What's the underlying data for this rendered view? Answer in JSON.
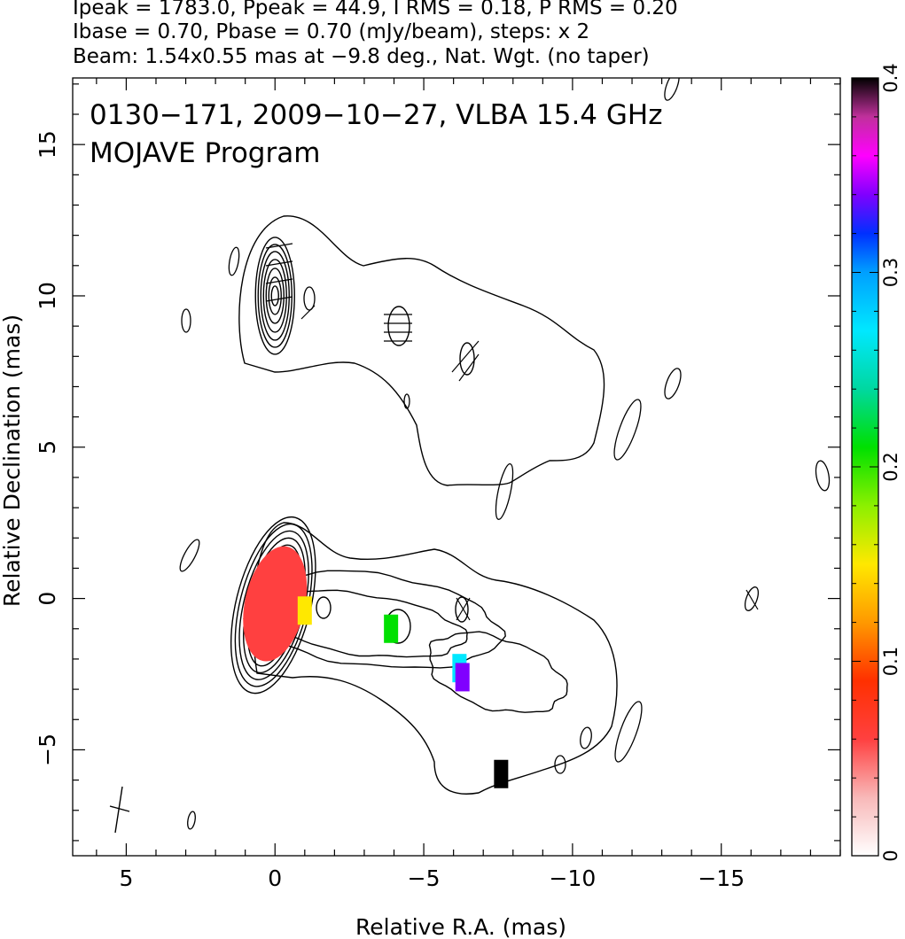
{
  "header": {
    "line1": "Ipeak = 1783.0, Ppeak = 44.9, I RMS = 0.18, P RMS = 0.20",
    "line2": "Ibase = 0.70, Pbase = 0.70 (mJy/beam), steps: x 2",
    "line3": "Beam: 1.54x0.55 mas at −9.8 deg., Nat. Wgt. (no taper)"
  },
  "plot_title": {
    "line1": "0130−171, 2009−10−27, VLBA 15.4 GHz",
    "line2": "MOJAVE Program"
  },
  "chart_data": {
    "type": "heatmap",
    "title": "0130−171, 2009−10−27, VLBA 15.4 GHz",
    "subtitle": "MOJAVE Program",
    "xlabel": "Relative R.A. (mas)",
    "ylabel": "Relative Declination (mas)",
    "xlim": [
      6.8,
      -19
    ],
    "ylim": [
      -8.5,
      17.2
    ],
    "x_ticks": [
      5,
      0,
      -5,
      -10,
      -15
    ],
    "x_tick_labels": [
      "5",
      "0",
      "−5",
      "−10",
      "−15"
    ],
    "y_ticks": [
      -5,
      0,
      5,
      10,
      15
    ],
    "y_tick_labels": [
      "−5",
      "0",
      "5",
      "10",
      "15"
    ],
    "colorbar": {
      "range": [
        0,
        0.4
      ],
      "ticks": [
        0,
        0.1,
        0.2,
        0.3,
        0.4
      ],
      "tick_labels": [
        "0",
        "0.1",
        "0.2",
        "0.3",
        "0.4"
      ],
      "stops": [
        {
          "v": 0.0,
          "color": "#ffffff"
        },
        {
          "v": 0.03,
          "color": "#f8b8b8"
        },
        {
          "v": 0.06,
          "color": "#ff4040"
        },
        {
          "v": 0.09,
          "color": "#ff3000"
        },
        {
          "v": 0.12,
          "color": "#ff9900"
        },
        {
          "v": 0.15,
          "color": "#ffe800"
        },
        {
          "v": 0.18,
          "color": "#8cf000"
        },
        {
          "v": 0.21,
          "color": "#00e000"
        },
        {
          "v": 0.24,
          "color": "#00d8a0"
        },
        {
          "v": 0.27,
          "color": "#00e8ff"
        },
        {
          "v": 0.3,
          "color": "#00a0ff"
        },
        {
          "v": 0.32,
          "color": "#0030ff"
        },
        {
          "v": 0.34,
          "color": "#8000ff"
        },
        {
          "v": 0.36,
          "color": "#ff00ff"
        },
        {
          "v": 0.38,
          "color": "#c0309c"
        },
        {
          "v": 0.4,
          "color": "#000000"
        }
      ]
    },
    "pol_fraction_regions": [
      {
        "ra": -1.0,
        "dec": -0.4,
        "value": 0.13
      },
      {
        "ra": -3.9,
        "dec": -1.0,
        "value": 0.2
      },
      {
        "ra": -6.2,
        "dec": -2.3,
        "value": 0.27
      },
      {
        "ra": -6.3,
        "dec": -2.6,
        "value": 0.33
      },
      {
        "ra": -7.6,
        "dec": -5.8,
        "value": 0.4
      }
    ],
    "core_component": {
      "ra": 0,
      "dec": 0,
      "value": 0.05
    },
    "northern_component": {
      "ra": 0,
      "dec": 10
    }
  },
  "colors": {
    "axis": "#000000",
    "contour": "#000000"
  }
}
